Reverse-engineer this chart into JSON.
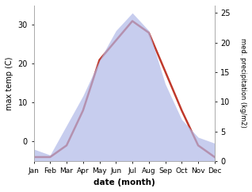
{
  "months": [
    "Jan",
    "Feb",
    "Mar",
    "Apr",
    "May",
    "Jun",
    "Jul",
    "Aug",
    "Sep",
    "Oct",
    "Nov",
    "Dec"
  ],
  "temperature": [
    -4,
    -4,
    -1,
    8,
    21,
    26,
    31,
    28,
    18,
    8,
    -1,
    -4
  ],
  "precipitation": [
    2,
    1,
    6,
    11,
    17,
    22,
    25,
    22,
    13,
    7,
    4,
    3
  ],
  "temp_color": "#c0392b",
  "precip_color": "#b0b8e8",
  "temp_ylim": [
    -5,
    35
  ],
  "temp_yticks": [
    0,
    10,
    20,
    30
  ],
  "precip_ylim": [
    0,
    26.25
  ],
  "precip_yticks": [
    0,
    5,
    10,
    15,
    20,
    25
  ],
  "xlabel": "date (month)",
  "ylabel_left": "max temp (C)",
  "ylabel_right": "med. precipitation (kg/m2)",
  "bg_color": "#ffffff"
}
